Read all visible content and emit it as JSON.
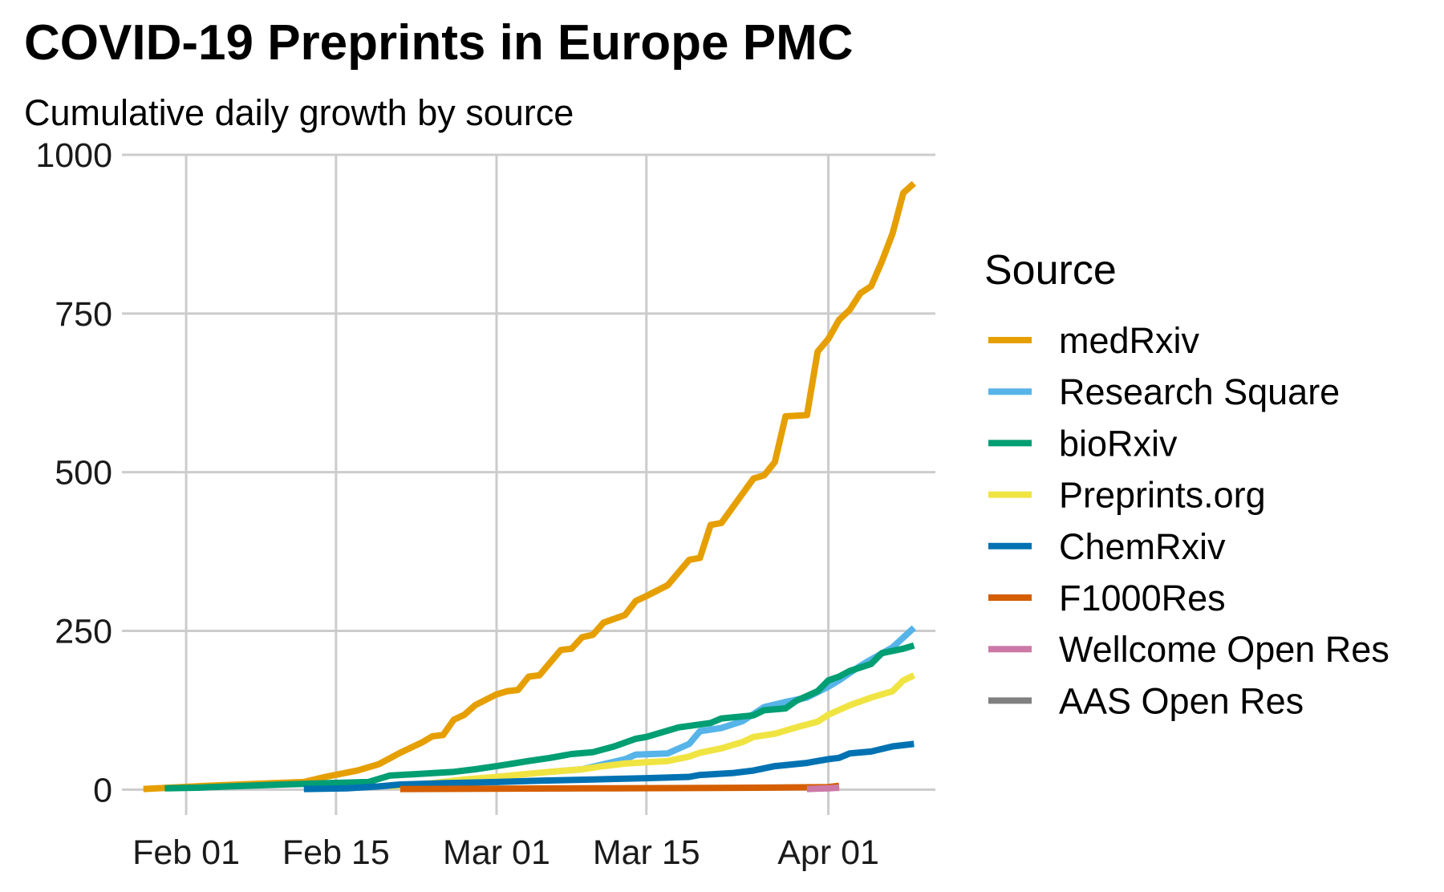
{
  "chart_data": {
    "type": "line",
    "title": "COVID-19 Preprints in Europe PMC",
    "subtitle": "Cumulative daily growth by source",
    "xlabel": "",
    "ylabel": "",
    "x_axis_type": "date",
    "xlim": [
      "2020-01-26",
      "2020-04-11"
    ],
    "ylim": [
      -40,
      1000
    ],
    "grid": true,
    "x_ticks": [
      {
        "date": "2020-02-01",
        "label": "Feb 01"
      },
      {
        "date": "2020-02-15",
        "label": "Feb 15"
      },
      {
        "date": "2020-03-01",
        "label": "Mar 01"
      },
      {
        "date": "2020-03-15",
        "label": "Mar 15"
      },
      {
        "date": "2020-04-01",
        "label": "Apr 01"
      }
    ],
    "y_ticks": [
      {
        "value": 0,
        "label": "0"
      },
      {
        "value": 250,
        "label": "250"
      },
      {
        "value": 500,
        "label": "500"
      },
      {
        "value": 750,
        "label": "750"
      },
      {
        "value": 1000,
        "label": "1000"
      }
    ],
    "legend": {
      "title": "Source",
      "placement": "right"
    },
    "series": [
      {
        "name": "medRxiv",
        "color": "#E69F00",
        "points": [
          [
            "2020-01-28",
            1
          ],
          [
            "2020-02-03",
            6
          ],
          [
            "2020-02-09",
            10
          ],
          [
            "2020-02-12",
            12
          ],
          [
            "2020-02-14",
            20
          ],
          [
            "2020-02-17",
            30
          ],
          [
            "2020-02-19",
            40
          ],
          [
            "2020-02-21",
            58
          ],
          [
            "2020-02-23",
            74
          ],
          [
            "2020-02-24",
            84
          ],
          [
            "2020-02-25",
            86
          ],
          [
            "2020-02-26",
            110
          ],
          [
            "2020-02-27",
            118
          ],
          [
            "2020-02-28",
            133
          ],
          [
            "2020-03-01",
            150
          ],
          [
            "2020-03-02",
            155
          ],
          [
            "2020-03-03",
            157
          ],
          [
            "2020-03-04",
            178
          ],
          [
            "2020-03-05",
            180
          ],
          [
            "2020-03-07",
            220
          ],
          [
            "2020-03-08",
            222
          ],
          [
            "2020-03-09",
            240
          ],
          [
            "2020-03-10",
            244
          ],
          [
            "2020-03-11",
            263
          ],
          [
            "2020-03-13",
            275
          ],
          [
            "2020-03-14",
            297
          ],
          [
            "2020-03-15",
            305
          ],
          [
            "2020-03-17",
            322
          ],
          [
            "2020-03-19",
            362
          ],
          [
            "2020-03-20",
            365
          ],
          [
            "2020-03-21",
            417
          ],
          [
            "2020-03-22",
            420
          ],
          [
            "2020-03-25",
            490
          ],
          [
            "2020-03-26",
            495
          ],
          [
            "2020-03-27",
            516
          ],
          [
            "2020-03-28",
            588
          ],
          [
            "2020-03-30",
            590
          ],
          [
            "2020-03-31",
            690
          ],
          [
            "2020-04-01",
            710
          ],
          [
            "2020-04-02",
            740
          ],
          [
            "2020-04-03",
            756
          ],
          [
            "2020-04-04",
            782
          ],
          [
            "2020-04-05",
            793
          ],
          [
            "2020-04-06",
            832
          ],
          [
            "2020-04-07",
            876
          ],
          [
            "2020-04-08",
            940
          ],
          [
            "2020-04-09",
            955
          ]
        ]
      },
      {
        "name": "Research Square",
        "color": "#56B4E9",
        "points": [
          [
            "2020-03-06",
            28
          ],
          [
            "2020-03-09",
            32
          ],
          [
            "2020-03-11",
            40
          ],
          [
            "2020-03-13",
            48
          ],
          [
            "2020-03-14",
            55
          ],
          [
            "2020-03-17",
            57
          ],
          [
            "2020-03-19",
            72
          ],
          [
            "2020-03-20",
            92
          ],
          [
            "2020-03-22",
            97
          ],
          [
            "2020-03-24",
            108
          ],
          [
            "2020-03-26",
            130
          ],
          [
            "2020-03-28",
            138
          ],
          [
            "2020-03-30",
            145
          ],
          [
            "2020-04-01",
            162
          ],
          [
            "2020-04-02",
            172
          ],
          [
            "2020-04-04",
            195
          ],
          [
            "2020-04-05",
            205
          ],
          [
            "2020-04-07",
            224
          ],
          [
            "2020-04-09",
            255
          ]
        ]
      },
      {
        "name": "bioRxiv",
        "color": "#009E73",
        "points": [
          [
            "2020-01-30",
            2
          ],
          [
            "2020-02-02",
            3
          ],
          [
            "2020-02-05",
            5
          ],
          [
            "2020-02-10",
            8
          ],
          [
            "2020-02-14",
            10
          ],
          [
            "2020-02-18",
            12
          ],
          [
            "2020-02-20",
            22
          ],
          [
            "2020-02-23",
            25
          ],
          [
            "2020-02-26",
            28
          ],
          [
            "2020-02-28",
            32
          ],
          [
            "2020-03-01",
            37
          ],
          [
            "2020-03-04",
            45
          ],
          [
            "2020-03-06",
            50
          ],
          [
            "2020-03-08",
            56
          ],
          [
            "2020-03-10",
            59
          ],
          [
            "2020-03-12",
            68
          ],
          [
            "2020-03-14",
            80
          ],
          [
            "2020-03-15",
            83
          ],
          [
            "2020-03-18",
            98
          ],
          [
            "2020-03-21",
            105
          ],
          [
            "2020-03-22",
            112
          ],
          [
            "2020-03-25",
            117
          ],
          [
            "2020-03-26",
            125
          ],
          [
            "2020-03-28",
            128
          ],
          [
            "2020-03-29",
            140
          ],
          [
            "2020-03-31",
            155
          ],
          [
            "2020-04-01",
            172
          ],
          [
            "2020-04-02",
            178
          ],
          [
            "2020-04-03",
            187
          ],
          [
            "2020-04-05",
            198
          ],
          [
            "2020-04-06",
            215
          ],
          [
            "2020-04-08",
            222
          ],
          [
            "2020-04-09",
            227
          ]
        ]
      },
      {
        "name": "Preprints.org",
        "color": "#F0E442",
        "points": [
          [
            "2020-02-20",
            5
          ],
          [
            "2020-02-24",
            10
          ],
          [
            "2020-02-27",
            16
          ],
          [
            "2020-03-01",
            20
          ],
          [
            "2020-03-04",
            25
          ],
          [
            "2020-03-06",
            28
          ],
          [
            "2020-03-09",
            32
          ],
          [
            "2020-03-11",
            37
          ],
          [
            "2020-03-13",
            41
          ],
          [
            "2020-03-15",
            43
          ],
          [
            "2020-03-17",
            45
          ],
          [
            "2020-03-19",
            52
          ],
          [
            "2020-03-20",
            58
          ],
          [
            "2020-03-22",
            65
          ],
          [
            "2020-03-24",
            75
          ],
          [
            "2020-03-25",
            83
          ],
          [
            "2020-03-27",
            88
          ],
          [
            "2020-03-29",
            98
          ],
          [
            "2020-03-31",
            107
          ],
          [
            "2020-04-01",
            118
          ],
          [
            "2020-04-03",
            133
          ],
          [
            "2020-04-05",
            145
          ],
          [
            "2020-04-07",
            155
          ],
          [
            "2020-04-08",
            172
          ],
          [
            "2020-04-09",
            180
          ]
        ]
      },
      {
        "name": "ChemRxiv",
        "color": "#0072B2",
        "points": [
          [
            "2020-02-12",
            1
          ],
          [
            "2020-02-16",
            2
          ],
          [
            "2020-02-19",
            5
          ],
          [
            "2020-02-21",
            8
          ],
          [
            "2020-02-25",
            10
          ],
          [
            "2020-03-01",
            12
          ],
          [
            "2020-03-05",
            14
          ],
          [
            "2020-03-10",
            16
          ],
          [
            "2020-03-15",
            18
          ],
          [
            "2020-03-19",
            20
          ],
          [
            "2020-03-20",
            23
          ],
          [
            "2020-03-23",
            26
          ],
          [
            "2020-03-25",
            30
          ],
          [
            "2020-03-27",
            37
          ],
          [
            "2020-03-30",
            42
          ],
          [
            "2020-03-31",
            45
          ],
          [
            "2020-04-01",
            48
          ],
          [
            "2020-04-02",
            50
          ],
          [
            "2020-04-03",
            57
          ],
          [
            "2020-04-05",
            60
          ],
          [
            "2020-04-07",
            68
          ],
          [
            "2020-04-09",
            72
          ]
        ]
      },
      {
        "name": "F1000Res",
        "color": "#D55E00",
        "points": [
          [
            "2020-02-21",
            1
          ],
          [
            "2020-03-10",
            2
          ],
          [
            "2020-03-25",
            3
          ],
          [
            "2020-04-01",
            4
          ],
          [
            "2020-04-02",
            6
          ]
        ]
      },
      {
        "name": "Wellcome Open Res",
        "color": "#CC79A7",
        "points": [
          [
            "2020-03-30",
            1
          ],
          [
            "2020-04-01",
            2
          ],
          [
            "2020-04-02",
            3
          ]
        ]
      },
      {
        "name": "AAS Open Res",
        "color": "#808080",
        "points": []
      }
    ]
  }
}
